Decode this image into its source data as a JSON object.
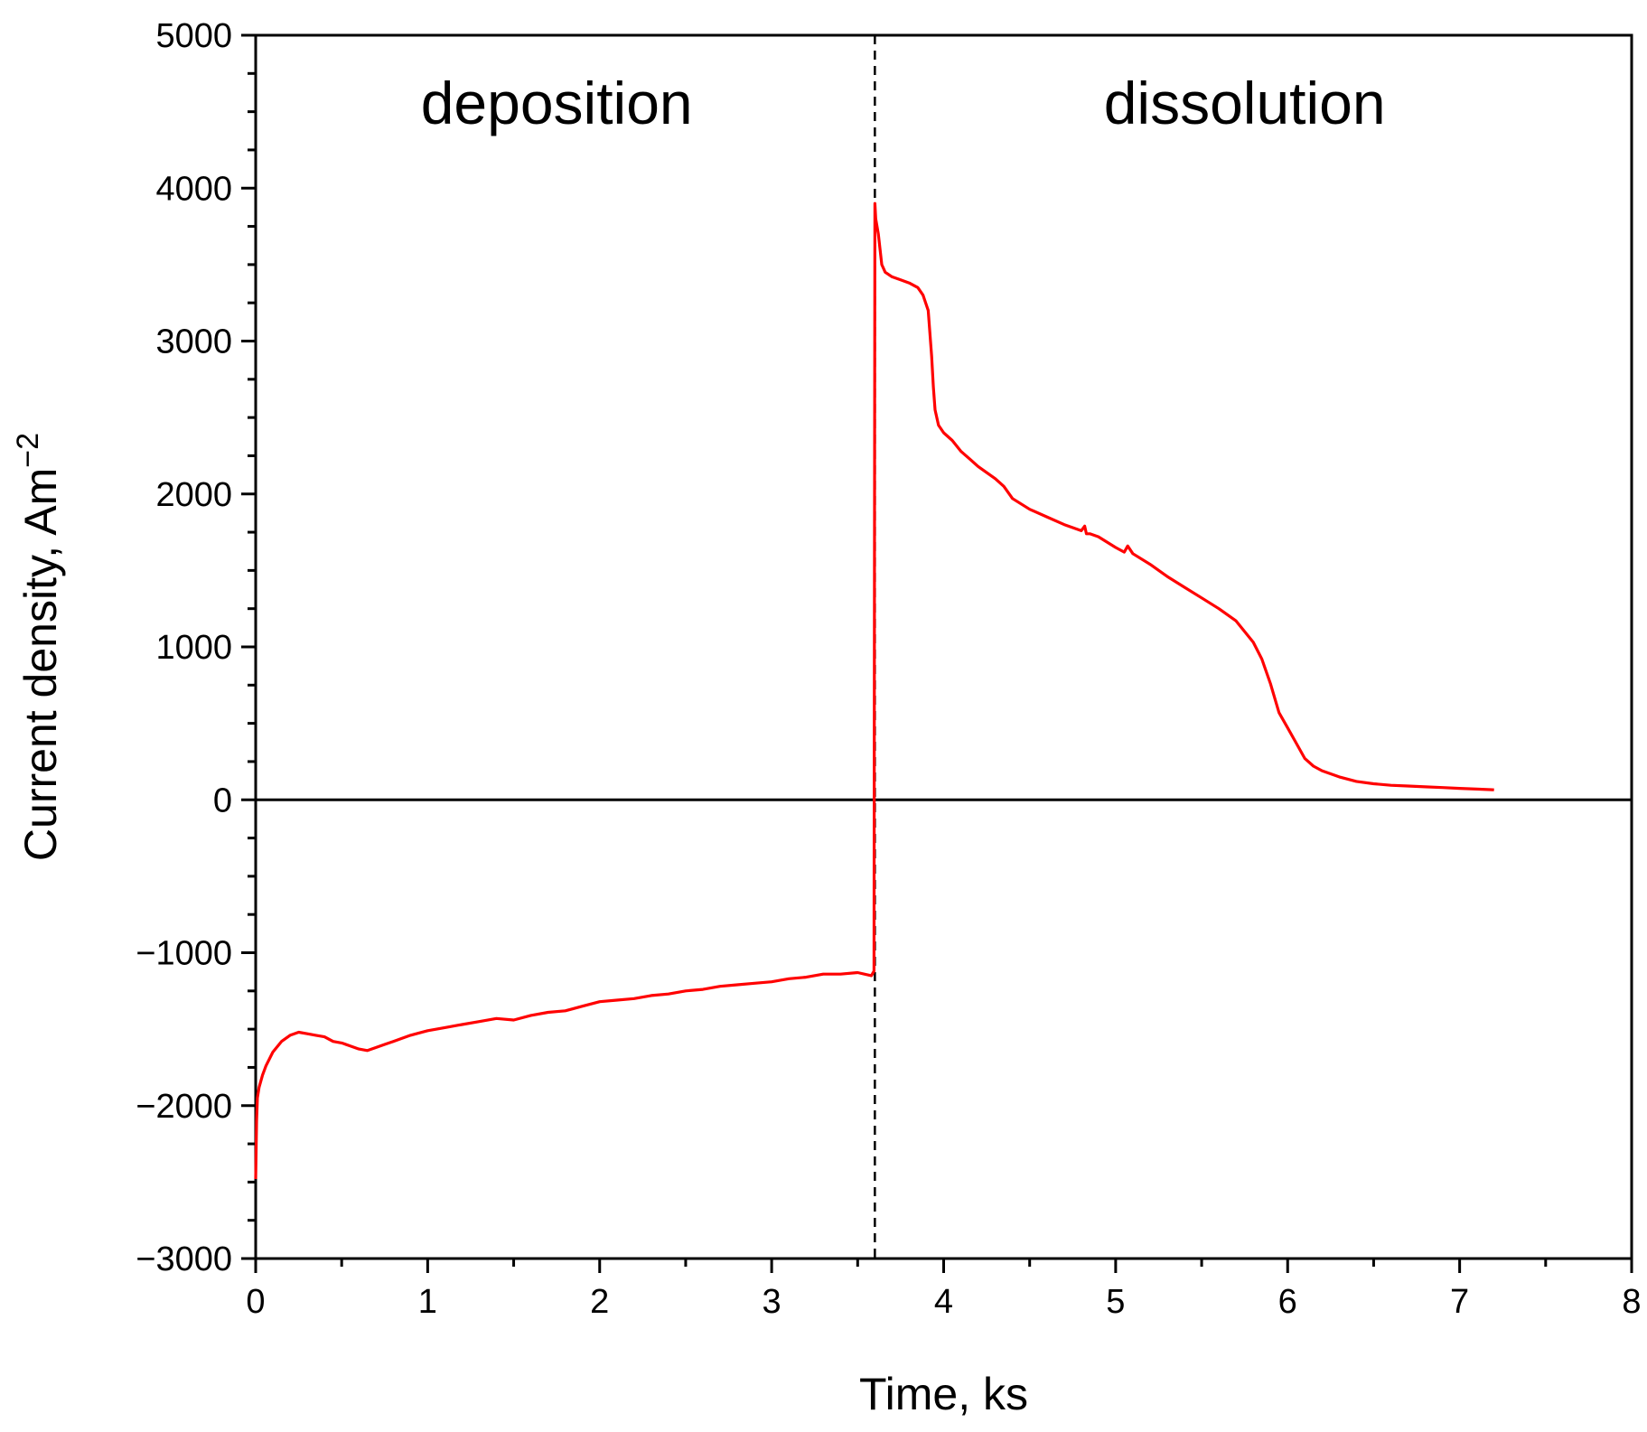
{
  "chart_data": {
    "type": "line",
    "xlabel": "Time, ks",
    "ylabel_main": "Current density, Am",
    "ylabel_sup": "−2",
    "xlim": [
      0,
      8
    ],
    "ylim": [
      -3000,
      5000
    ],
    "xticks": [
      0,
      1,
      2,
      3,
      4,
      5,
      6,
      7,
      8
    ],
    "xtick_labels": [
      "0",
      "1",
      "2",
      "3",
      "4",
      "5",
      "6",
      "7",
      "8"
    ],
    "yticks": [
      -3000,
      -2000,
      -1000,
      0,
      1000,
      2000,
      3000,
      4000,
      5000
    ],
    "ytick_labels": [
      "−3000",
      "−2000",
      "−1000",
      "0",
      "1000",
      "2000",
      "3000",
      "4000",
      "5000"
    ],
    "zero_line": 0,
    "divider_x": 3.6,
    "annotations": [
      {
        "text": "deposition",
        "x": 1.75,
        "y": 4550
      },
      {
        "text": "dissolution",
        "x": 5.75,
        "y": 4550
      }
    ],
    "grid": false,
    "series": [
      {
        "color": "#ff0000",
        "x": [
          0.0,
          0.005,
          0.01,
          0.02,
          0.04,
          0.06,
          0.1,
          0.15,
          0.2,
          0.25,
          0.3,
          0.35,
          0.4,
          0.45,
          0.5,
          0.55,
          0.6,
          0.65,
          0.7,
          0.75,
          0.8,
          0.9,
          1.0,
          1.1,
          1.2,
          1.3,
          1.4,
          1.5,
          1.6,
          1.7,
          1.8,
          1.9,
          2.0,
          2.1,
          2.2,
          2.3,
          2.4,
          2.5,
          2.6,
          2.7,
          2.8,
          2.9,
          3.0,
          3.1,
          3.2,
          3.3,
          3.4,
          3.5,
          3.58,
          3.595,
          3.6,
          3.605,
          3.62,
          3.64,
          3.66,
          3.7,
          3.75,
          3.8,
          3.85,
          3.88,
          3.91,
          3.93,
          3.94,
          3.95,
          3.97,
          4.0,
          4.05,
          4.1,
          4.15,
          4.2,
          4.25,
          4.3,
          4.35,
          4.4,
          4.5,
          4.6,
          4.7,
          4.8,
          4.82,
          4.83,
          4.85,
          4.9,
          5.0,
          5.05,
          5.07,
          5.1,
          5.2,
          5.3,
          5.4,
          5.5,
          5.6,
          5.7,
          5.8,
          5.85,
          5.9,
          5.95,
          6.0,
          6.05,
          6.1,
          6.15,
          6.2,
          6.3,
          6.4,
          6.5,
          6.6,
          6.7,
          6.8,
          6.9,
          7.0,
          7.1,
          7.2
        ],
        "y": [
          -2480,
          -2100,
          -1950,
          -1880,
          -1800,
          -1740,
          -1650,
          -1580,
          -1540,
          -1520,
          -1530,
          -1540,
          -1550,
          -1580,
          -1590,
          -1610,
          -1630,
          -1640,
          -1620,
          -1600,
          -1580,
          -1540,
          -1510,
          -1490,
          -1470,
          -1450,
          -1430,
          -1440,
          -1410,
          -1390,
          -1380,
          -1350,
          -1320,
          -1310,
          -1300,
          -1280,
          -1270,
          -1250,
          -1240,
          -1220,
          -1210,
          -1200,
          -1190,
          -1170,
          -1160,
          -1140,
          -1140,
          -1130,
          -1150,
          -1120,
          3900,
          3800,
          3700,
          3500,
          3450,
          3420,
          3400,
          3380,
          3350,
          3300,
          3200,
          2900,
          2700,
          2550,
          2450,
          2400,
          2350,
          2280,
          2230,
          2180,
          2140,
          2100,
          2050,
          1970,
          1900,
          1850,
          1800,
          1760,
          1790,
          1740,
          1740,
          1720,
          1650,
          1620,
          1660,
          1610,
          1540,
          1460,
          1390,
          1320,
          1250,
          1170,
          1030,
          920,
          760,
          570,
          470,
          370,
          270,
          220,
          190,
          150,
          120,
          105,
          95,
          90,
          85,
          80,
          75,
          70,
          65
        ]
      }
    ]
  }
}
